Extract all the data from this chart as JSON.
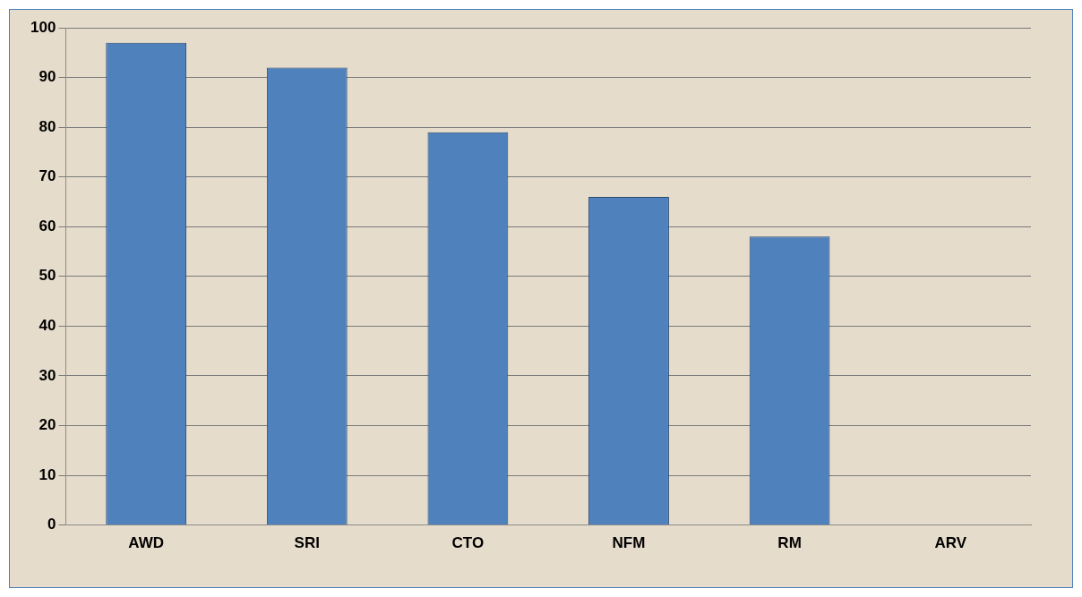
{
  "chart_data": {
    "type": "bar",
    "categories": [
      "AWD",
      "SRI",
      "CTO",
      "NFM",
      "RM",
      "ARV"
    ],
    "values": [
      97,
      92,
      79,
      66,
      58,
      0
    ],
    "color": "#4f81bd",
    "ylim": [
      0,
      100
    ],
    "yticks": [
      0,
      10,
      20,
      30,
      40,
      50,
      60,
      70,
      80,
      90,
      100
    ],
    "grid": "y",
    "legend": false
  }
}
